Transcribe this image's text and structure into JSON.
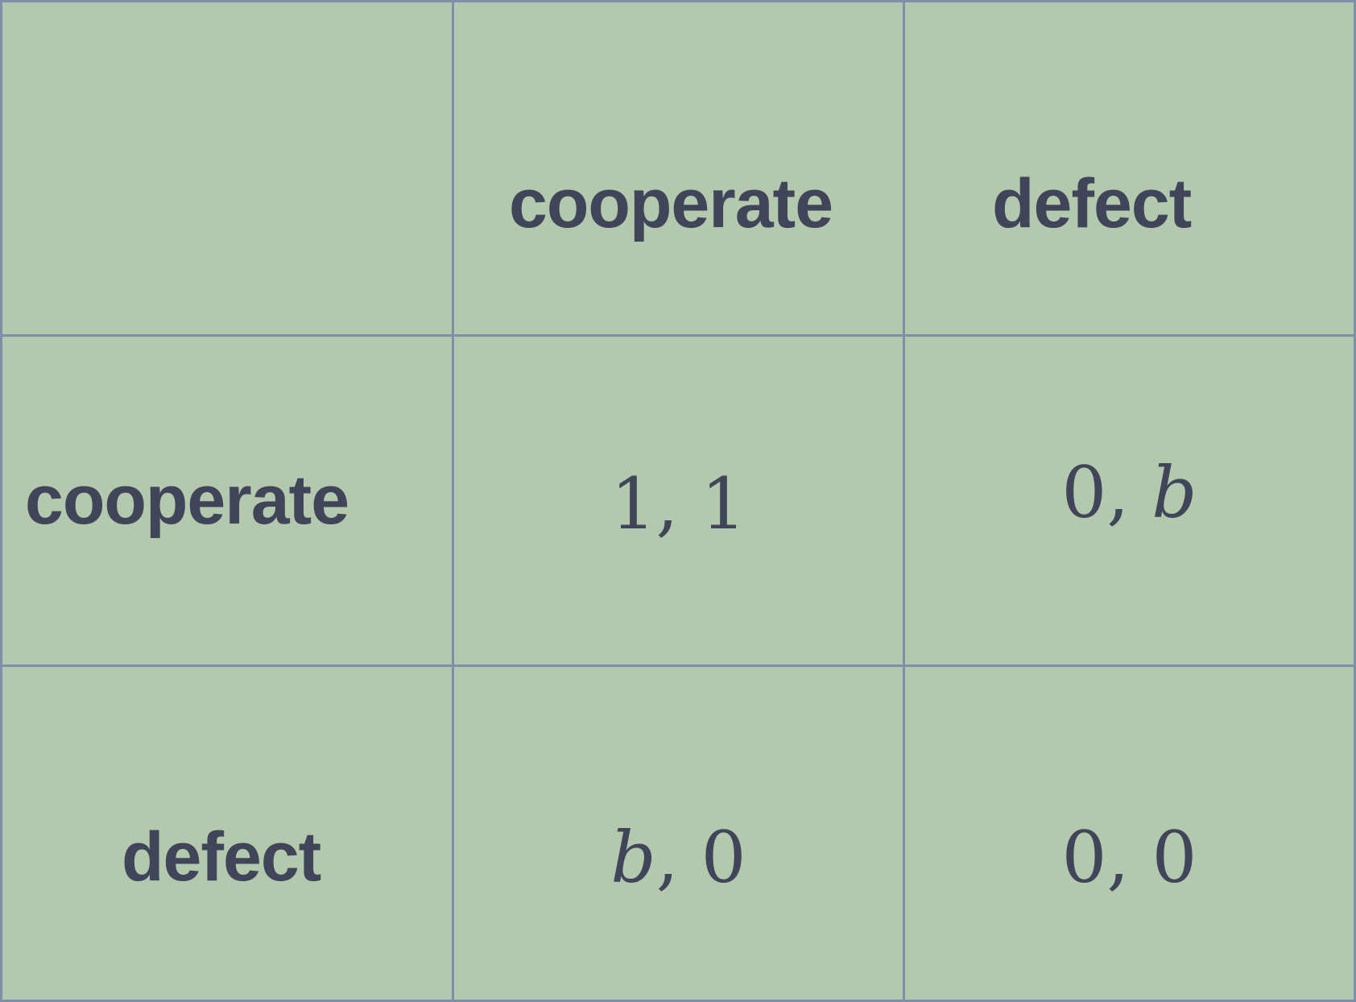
{
  "matrix": {
    "column_headers": [
      "cooperate",
      "defect"
    ],
    "row_headers": [
      "cooperate",
      "defect"
    ],
    "payoffs": [
      [
        {
          "first": "1",
          "sep": ", ",
          "second": "1"
        },
        {
          "first": "0",
          "sep": ", ",
          "second": "b"
        }
      ],
      [
        {
          "first": "b",
          "sep": ", ",
          "second": "0"
        },
        {
          "first": "0",
          "sep": ", ",
          "second": "0"
        }
      ]
    ]
  },
  "colors": {
    "background": "#b2c9ad",
    "grid_line": "#7d8fa9",
    "text": "#414559"
  }
}
